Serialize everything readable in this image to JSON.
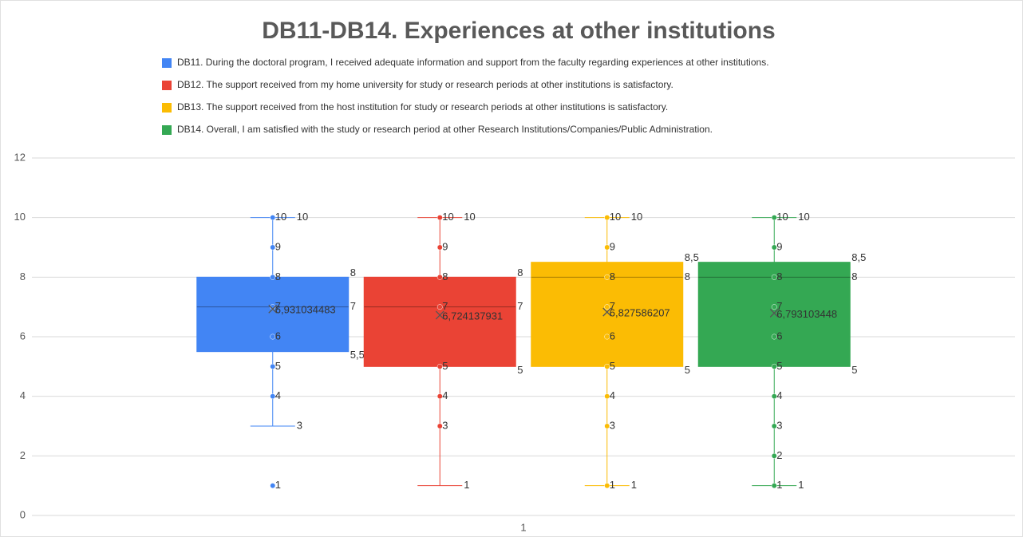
{
  "chart_data": {
    "type": "box",
    "title": "DB11-DB14. Experiences at other institutions",
    "categories": [
      "1"
    ],
    "ylim": [
      0,
      12
    ],
    "yticks": [
      0,
      2,
      4,
      6,
      8,
      10,
      12
    ],
    "grid": true,
    "legend": "top",
    "series": [
      {
        "name": "DB11. During the doctoral program, I received adequate information and support from the faculty regarding experiences at other institutions.",
        "color": "#4285f4",
        "min": 3,
        "q1": 5.5,
        "q1_label": "5,5",
        "median": 7,
        "q3": 8,
        "max": 10,
        "mean": 6.931034483,
        "mean_label": "6,931034483",
        "points": [
          10,
          9,
          8,
          7,
          6,
          5,
          4,
          1
        ]
      },
      {
        "name": "DB12. The support received from my home university for study or research periods at other institutions is satisfactory.",
        "color": "#ea4335",
        "min": 1,
        "q1": 5,
        "median": 7,
        "q3": 8,
        "max": 10,
        "mean": 6.724137931,
        "mean_label": "6,724137931",
        "points": [
          10,
          9,
          8,
          7,
          5,
          4,
          3
        ]
      },
      {
        "name": "DB13. The support received from the host institution for study or research periods at other institutions is satisfactory.",
        "color": "#fbbc04",
        "min": 1,
        "q1": 5,
        "median": 8,
        "q3": 8.5,
        "q3_label": "8,5",
        "max": 10,
        "mean": 6.827586207,
        "mean_label": "6,827586207",
        "points": [
          10,
          9,
          8,
          7,
          6,
          5,
          4,
          3,
          1
        ]
      },
      {
        "name": "DB14. Overall, I am satisfied with the study or research period at other Research Institutions/Companies/Public Administration.",
        "color": "#34a853",
        "min": 1,
        "q1": 5,
        "median": 8,
        "q3": 8.5,
        "q3_label": "8,5",
        "max": 10,
        "mean": 6.793103448,
        "mean_label": "6,793103448",
        "points": [
          10,
          9,
          8,
          7,
          6,
          5,
          4,
          3,
          2,
          1
        ]
      }
    ]
  }
}
